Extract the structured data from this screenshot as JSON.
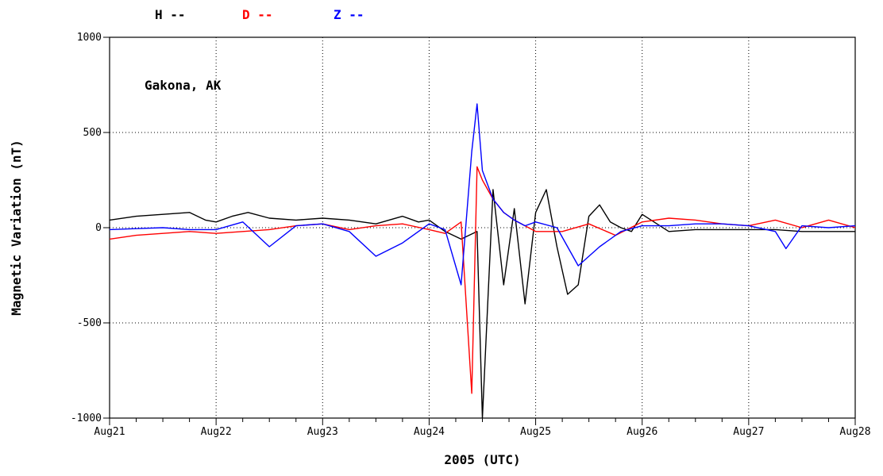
{
  "chart_data": {
    "type": "line",
    "title": "",
    "annotation": "Gakona, AK",
    "xlabel": "2005 (UTC)",
    "ylabel": "Magnetic Variation (nT)",
    "ylim": [
      -1000,
      1000
    ],
    "yticks": [
      -1000,
      -500,
      0,
      500,
      1000
    ],
    "ytick_labels": [
      "-1000",
      "-500",
      "0",
      "500",
      "1000"
    ],
    "xlim": [
      0,
      7
    ],
    "xticks": [
      0,
      1,
      2,
      3,
      4,
      5,
      6,
      7
    ],
    "xtick_labels": [
      "Aug21",
      "Aug22",
      "Aug23",
      "Aug24",
      "Aug25",
      "Aug26",
      "Aug27",
      "Aug28"
    ],
    "x_unit": "days since Aug21 00:00 UTC",
    "grid": true,
    "legend_position": "top",
    "series": [
      {
        "name": "H --",
        "color": "#000000",
        "x": [
          0,
          0.25,
          0.5,
          0.75,
          0.9,
          1.0,
          1.15,
          1.3,
          1.5,
          1.75,
          2.0,
          2.25,
          2.5,
          2.75,
          2.9,
          3.0,
          3.15,
          3.3,
          3.45,
          3.5,
          3.6,
          3.7,
          3.8,
          3.9,
          4.0,
          4.1,
          4.2,
          4.3,
          4.4,
          4.5,
          4.6,
          4.7,
          4.8,
          4.9,
          5.0,
          5.25,
          5.5,
          5.75,
          6.0,
          6.25,
          6.5,
          6.75,
          7.0
        ],
        "y": [
          40,
          60,
          70,
          80,
          40,
          30,
          60,
          80,
          50,
          40,
          50,
          40,
          20,
          60,
          30,
          40,
          -20,
          -60,
          -20,
          -1000,
          200,
          -300,
          100,
          -400,
          80,
          200,
          -100,
          -350,
          -300,
          60,
          120,
          30,
          0,
          -20,
          70,
          -20,
          -10,
          -10,
          -10,
          -10,
          -20,
          -20,
          -20
        ]
      },
      {
        "name": "D --",
        "color": "#ff0000",
        "x": [
          0,
          0.25,
          0.5,
          0.75,
          1.0,
          1.25,
          1.5,
          1.75,
          2.0,
          2.25,
          2.5,
          2.75,
          3.0,
          3.15,
          3.3,
          3.4,
          3.45,
          3.5,
          3.6,
          3.7,
          3.8,
          3.9,
          4.0,
          4.25,
          4.5,
          4.75,
          5.0,
          5.25,
          5.5,
          5.75,
          6.0,
          6.25,
          6.5,
          6.75,
          7.0
        ],
        "y": [
          -60,
          -40,
          -30,
          -20,
          -30,
          -20,
          -10,
          10,
          20,
          -10,
          10,
          20,
          -10,
          -30,
          30,
          -870,
          320,
          250,
          150,
          80,
          40,
          10,
          -20,
          -20,
          20,
          -40,
          30,
          50,
          40,
          20,
          10,
          40,
          0,
          40,
          0
        ]
      },
      {
        "name": "Z --",
        "color": "#0000ff",
        "x": [
          0,
          0.25,
          0.5,
          0.75,
          1.0,
          1.25,
          1.5,
          1.75,
          2.0,
          2.25,
          2.5,
          2.75,
          3.0,
          3.15,
          3.3,
          3.4,
          3.45,
          3.5,
          3.6,
          3.7,
          3.8,
          3.9,
          4.0,
          4.2,
          4.4,
          4.6,
          4.8,
          5.0,
          5.25,
          5.5,
          5.75,
          6.0,
          6.25,
          6.35,
          6.5,
          6.75,
          7.0
        ],
        "y": [
          -10,
          -5,
          0,
          -10,
          -10,
          30,
          -100,
          10,
          20,
          -20,
          -150,
          -80,
          20,
          -10,
          -300,
          400,
          650,
          300,
          150,
          80,
          40,
          10,
          30,
          0,
          -200,
          -100,
          -20,
          10,
          10,
          20,
          20,
          10,
          -20,
          -110,
          10,
          0,
          10
        ]
      }
    ]
  }
}
